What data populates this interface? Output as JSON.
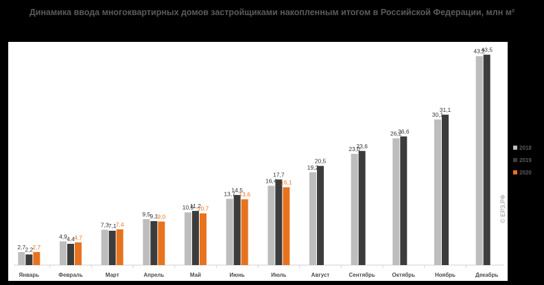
{
  "chart_data": {
    "type": "bar",
    "title": "Динамика ввода многоквартирных домов застройщиками накопленным итогом в Российской Федерации, млн м²",
    "categories": [
      "Январь",
      "Февраль",
      "Март",
      "Апрель",
      "Май",
      "Июнь",
      "Июль",
      "Август",
      "Сентябрь",
      "Октябрь",
      "Ноябрь",
      "Декабрь"
    ],
    "series": [
      {
        "name": "2018",
        "color": "#bdbdbd",
        "values": [
          2.7,
          4.9,
          7.3,
          9.5,
          10.9,
          13.7,
          16.4,
          19.2,
          23.0,
          26.2,
          30.1,
          43.2
        ],
        "labels": [
          "2,7",
          "4,9",
          "7,3",
          "9,5",
          "10,9",
          "13,7",
          "16,4",
          "19,2",
          "23,0",
          "26,2",
          "30,1",
          "43,2"
        ]
      },
      {
        "name": "2019",
        "color": "#3c3c3c",
        "values": [
          2.2,
          4.4,
          7.1,
          9.1,
          11.2,
          14.5,
          17.7,
          20.5,
          23.6,
          26.6,
          31.1,
          43.5
        ],
        "labels": [
          "2,2",
          "4,4",
          "7,1",
          "9,1",
          "11,2",
          "14,5",
          "17,7",
          "20,5",
          "23,6",
          "26,6",
          "31,1",
          "43,5"
        ]
      },
      {
        "name": "2020",
        "color": "#e8731e",
        "values": [
          2.7,
          4.7,
          7.4,
          9.0,
          10.7,
          13.6,
          16.1,
          null,
          null,
          null,
          null,
          null
        ],
        "labels": [
          "2,7",
          "4,7",
          "7,4",
          "9,0",
          "10,7",
          "13,6",
          "16,1",
          null,
          null,
          null,
          null,
          null
        ]
      }
    ],
    "ylim": [
      0,
      46
    ],
    "legend_position": "right",
    "grid": false
  },
  "watermark": "© ЕРЗ.РФ"
}
